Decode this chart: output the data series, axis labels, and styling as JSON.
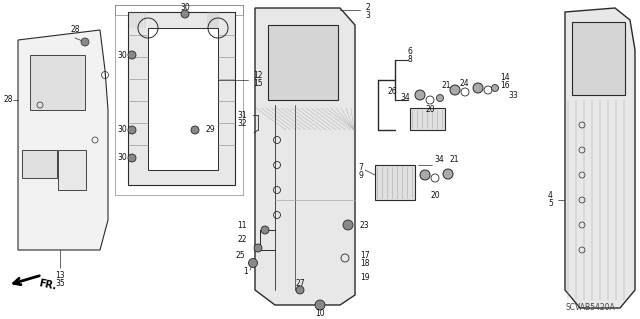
{
  "bg_color": "#ffffff",
  "fig_width": 6.4,
  "fig_height": 3.19,
  "dpi": 100,
  "watermark": "SCVAB5420A",
  "line_color": "#2a2a2a",
  "gray_fill": "#d8d8d8",
  "light_fill": "#eeeeee"
}
